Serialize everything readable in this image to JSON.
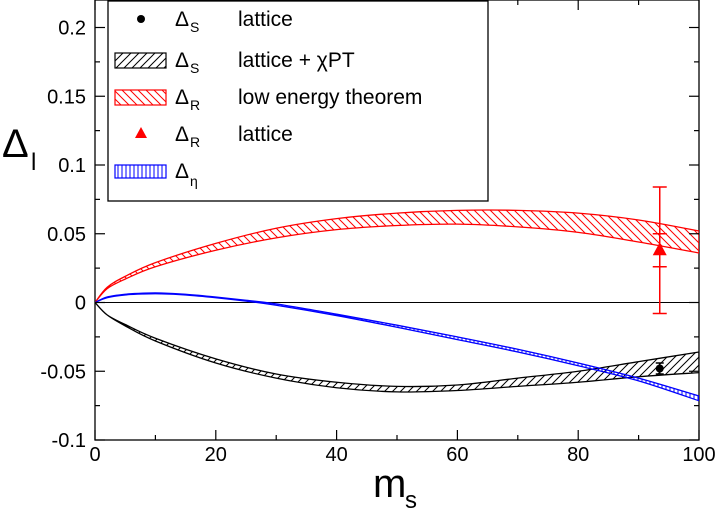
{
  "chart_data": {
    "type": "line",
    "xlabel": "m",
    "xlabel_sub": "s",
    "ylabel": "Δ",
    "ylabel_sub": "l",
    "xlim": [
      0,
      100
    ],
    "ylim": [
      -0.1,
      0.22
    ],
    "x_ticks": [
      0,
      20,
      40,
      60,
      80,
      100
    ],
    "x_tick_labels": [
      "0",
      "20",
      "40",
      "60",
      "80",
      "100"
    ],
    "y_ticks": [
      -0.1,
      -0.05,
      0,
      0.05,
      0.1,
      0.15,
      0.2
    ],
    "y_tick_labels": [
      "-0.1",
      "-0.05",
      "0",
      "0.05",
      "0.1",
      "0.15",
      "0.2"
    ],
    "zero_line": true,
    "legend_position": "top-left",
    "colors": {
      "black": "#000000",
      "red": "#ff0000",
      "blue": "#0000ff"
    },
    "series": [
      {
        "name": "Δ_S lattice + χPT",
        "legend_symbol": "Δ",
        "legend_sub": "S",
        "legend_text": "lattice + χPT",
        "kind": "band",
        "hatch": "diagonal",
        "color": "#000000",
        "x": [
          0,
          2,
          5,
          10,
          20,
          30,
          40,
          50,
          60,
          70,
          80,
          90,
          100
        ],
        "lower": [
          0,
          -0.009,
          -0.017,
          -0.028,
          -0.044,
          -0.055,
          -0.062,
          -0.065,
          -0.064,
          -0.061,
          -0.058,
          -0.054,
          -0.051
        ],
        "upper": [
          0,
          -0.009,
          -0.016,
          -0.026,
          -0.041,
          -0.052,
          -0.058,
          -0.061,
          -0.06,
          -0.055,
          -0.05,
          -0.043,
          -0.036
        ]
      },
      {
        "name": "Δ_R low energy theorem",
        "legend_symbol": "Δ",
        "legend_sub": "R",
        "legend_text": "low energy theorem",
        "kind": "band",
        "hatch": "diagonal",
        "color": "#ff0000",
        "x": [
          0,
          2,
          5,
          10,
          20,
          30,
          40,
          50,
          60,
          70,
          80,
          90,
          100
        ],
        "lower": [
          0,
          0.01,
          0.017,
          0.026,
          0.038,
          0.047,
          0.053,
          0.056,
          0.057,
          0.055,
          0.051,
          0.044,
          0.036
        ],
        "upper": [
          0,
          0.011,
          0.019,
          0.029,
          0.043,
          0.054,
          0.061,
          0.065,
          0.067,
          0.067,
          0.065,
          0.06,
          0.052
        ]
      },
      {
        "name": "Δ_η",
        "legend_symbol": "Δ",
        "legend_sub": "η",
        "legend_text": "",
        "kind": "band",
        "hatch": "vertical",
        "color": "#0000ff",
        "x": [
          0,
          2,
          5,
          8,
          11,
          15,
          20,
          25,
          30,
          40,
          50,
          60,
          70,
          80,
          90,
          100
        ],
        "lower": [
          0,
          0.0035,
          0.0055,
          0.0062,
          0.0063,
          0.0055,
          0.0035,
          0.001,
          -0.002,
          -0.0095,
          -0.018,
          -0.027,
          -0.036,
          -0.046,
          -0.057,
          -0.0715
        ],
        "upper": [
          0,
          0.004,
          0.006,
          0.0068,
          0.0069,
          0.006,
          0.004,
          0.0016,
          -0.001,
          -0.0085,
          -0.0165,
          -0.025,
          -0.034,
          -0.044,
          -0.055,
          -0.068
        ]
      },
      {
        "name": "Δ_S lattice",
        "legend_symbol": "Δ",
        "legend_sub": "S",
        "legend_text": "lattice",
        "kind": "point",
        "marker": "circle",
        "color": "#000000",
        "x": [
          93.5
        ],
        "y": [
          -0.048
        ],
        "yerr": [
          0.004
        ]
      },
      {
        "name": "Δ_R lattice",
        "legend_symbol": "Δ",
        "legend_sub": "R",
        "legend_text": "lattice",
        "kind": "point",
        "marker": "triangle",
        "color": "#ff0000",
        "x": [
          93.5
        ],
        "y": [
          0.038
        ],
        "yerr_inner": [
          0.012
        ],
        "yerr_outer": [
          0.046
        ]
      }
    ],
    "legend_order": [
      3,
      0,
      1,
      4,
      2
    ]
  }
}
